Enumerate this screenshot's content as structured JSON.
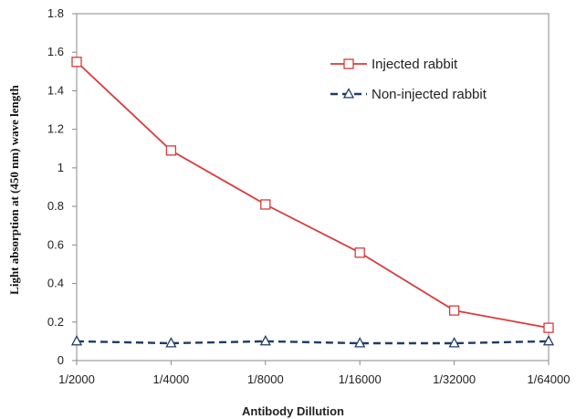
{
  "chart_data": {
    "type": "line",
    "title": "",
    "xlabel": "Antibody Dillution",
    "ylabel": "Light absorption at (450 nm) wave length",
    "categories": [
      "1/2000",
      "1/4000",
      "1/8000",
      "1/16000",
      "1/32000",
      "1/64000"
    ],
    "ylim": [
      0,
      1.8
    ],
    "yticks": [
      "0",
      "0.2",
      "0.4",
      "0.6",
      "0.8",
      "1",
      "1.2",
      "1.4",
      "1.6",
      "1.8"
    ],
    "grid": false,
    "legend_position": "top-right",
    "series": [
      {
        "name": "Injected rabbit",
        "values": [
          1.55,
          1.09,
          0.81,
          0.56,
          0.26,
          0.17
        ],
        "color": "#d93a3a",
        "line_style": "solid",
        "marker": "square"
      },
      {
        "name": "Non-injected rabbit",
        "values": [
          0.1,
          0.09,
          0.1,
          0.09,
          0.09,
          0.1
        ],
        "color": "#1f3b66",
        "line_style": "dashed",
        "marker": "triangle"
      }
    ]
  }
}
